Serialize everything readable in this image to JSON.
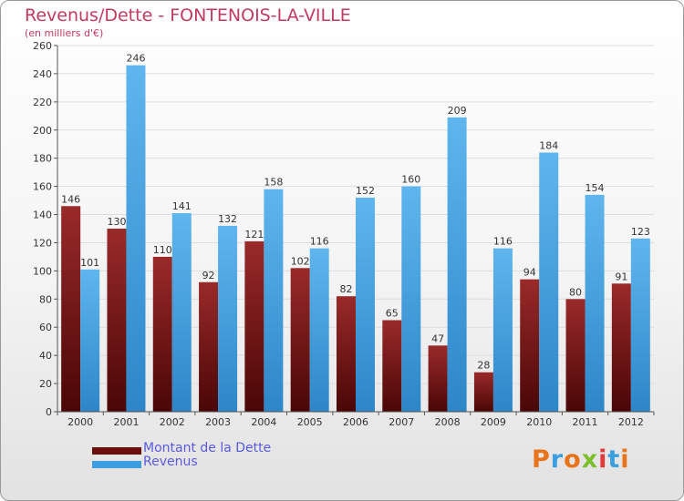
{
  "title": "Revenus/Dette - FONTENOIS-LA-VILLE",
  "subtitle": "(en milliers d'€)",
  "colors": {
    "dette": "#8b1a1a",
    "revenus": "#3a9ee0",
    "title": "#c23a5e",
    "legend_text": "#5a5ae0"
  },
  "legend": [
    {
      "label": "Montant de la Dette",
      "color": "#6b0e0e"
    },
    {
      "label": "Revenus",
      "color": "#3a9ee0"
    }
  ],
  "logo": {
    "text": "Proxiti"
  },
  "chart_data": {
    "type": "bar",
    "categories": [
      "2000",
      "2001",
      "2002",
      "2003",
      "2004",
      "2005",
      "2006",
      "2007",
      "2008",
      "2009",
      "2010",
      "2011",
      "2012"
    ],
    "series": [
      {
        "name": "Montant de la Dette",
        "values": [
          146,
          130,
          110,
          92,
          121,
          102,
          82,
          65,
          47,
          28,
          94,
          80,
          91
        ]
      },
      {
        "name": "Revenus",
        "values": [
          101,
          246,
          141,
          132,
          158,
          116,
          152,
          160,
          209,
          116,
          184,
          154,
          123
        ]
      }
    ],
    "ylim": [
      0,
      260
    ],
    "yticks": [
      0,
      20,
      40,
      60,
      80,
      100,
      120,
      140,
      160,
      180,
      200,
      220,
      240,
      260
    ],
    "grid": true,
    "legend_position": "bottom-left"
  }
}
